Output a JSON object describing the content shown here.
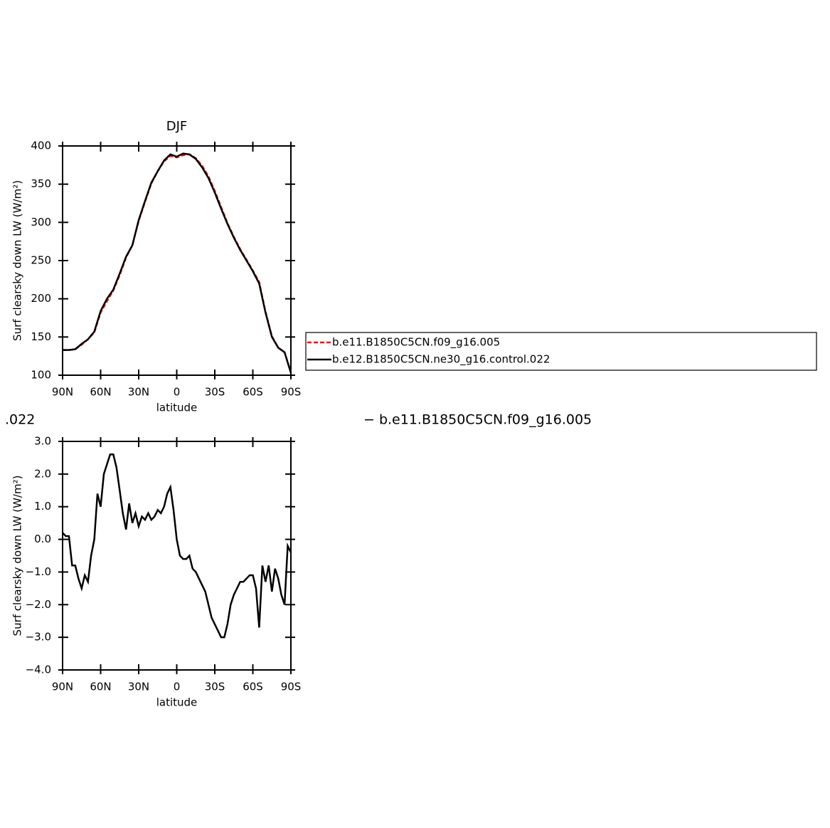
{
  "chart_data": [
    {
      "type": "line",
      "title": "DJF",
      "x_label": "latitude",
      "y_label": "Surf clearsky down LW (W/m²)",
      "x": [
        90,
        85,
        80,
        75,
        70,
        65,
        60,
        55,
        50,
        45,
        40,
        35,
        30,
        25,
        20,
        15,
        10,
        5,
        0,
        -5,
        -10,
        -15,
        -20,
        -25,
        -30,
        -35,
        -40,
        -45,
        -50,
        -55,
        -60,
        -65,
        -70,
        -75,
        -80,
        -85,
        -90
      ],
      "xlim": [
        90,
        -90
      ],
      "xticks": [
        {
          "value": 90,
          "label": "90N"
        },
        {
          "value": 60,
          "label": "60N"
        },
        {
          "value": 30,
          "label": "30N"
        },
        0,
        {
          "value": -30,
          "label": "30S"
        },
        {
          "value": -60,
          "label": "60S"
        },
        {
          "value": -90,
          "label": "90S"
        }
      ],
      "ylim": [
        100,
        400
      ],
      "yticks": [
        100,
        150,
        200,
        250,
        300,
        350,
        400
      ],
      "legend_position": "outside-right",
      "series": [
        {
          "name": "b.e11.B1850C5CN.f09_g16.005",
          "color": "#ff0000",
          "linestyle": "dashed",
          "values": [
            133,
            133,
            134,
            140,
            147,
            156,
            182,
            197,
            211,
            231,
            254,
            270,
            302,
            327,
            351,
            367,
            380,
            387,
            385,
            388,
            389,
            384,
            374,
            360,
            341,
            320,
            299,
            281,
            265,
            251,
            237,
            222,
            183,
            151,
            136,
            130,
            104
          ]
        },
        {
          "name": "b.e12.B1850C5CN.ne30_g16.control.022",
          "color": "#000000",
          "linestyle": "solid",
          "values": [
            133,
            133,
            134,
            141,
            147,
            157,
            184,
            200,
            212,
            233,
            255,
            270,
            303,
            328,
            352,
            367,
            381,
            389,
            386,
            390,
            389,
            383,
            372,
            358,
            339,
            318,
            298,
            280,
            264,
            250,
            236,
            220,
            182,
            150,
            136,
            130,
            103
          ]
        }
      ]
    },
    {
      "type": "line",
      "title_left": ".022",
      "title_right": "− b.e11.B1850C5CN.f09_g16.005",
      "x_label": "latitude",
      "y_label": "Surf clearsky down LW (W/m²)",
      "x": [
        90,
        87.5,
        85,
        82.5,
        80,
        77.5,
        75,
        72.5,
        70,
        67.5,
        65,
        62.5,
        60,
        57.5,
        55,
        52.5,
        50,
        47.5,
        45,
        42.5,
        40,
        37.5,
        35,
        32.5,
        30,
        27.5,
        25,
        22.5,
        20,
        17.5,
        15,
        12.5,
        10,
        7.5,
        5,
        2.5,
        0,
        -2.5,
        -5,
        -7.5,
        -10,
        -12.5,
        -15,
        -17.5,
        -20,
        -22.5,
        -25,
        -27.5,
        -30,
        -32.5,
        -35,
        -37.5,
        -40,
        -42.5,
        -45,
        -47.5,
        -50,
        -52.5,
        -55,
        -57.5,
        -60,
        -62.5,
        -65,
        -67.5,
        -70,
        -72.5,
        -75,
        -77.5,
        -80,
        -82.5,
        -85,
        -87.5,
        -90
      ],
      "xlim": [
        90,
        -90
      ],
      "xticks": [
        {
          "value": 90,
          "label": "90N"
        },
        {
          "value": 60,
          "label": "60N"
        },
        {
          "value": 30,
          "label": "30N"
        },
        0,
        {
          "value": -30,
          "label": "30S"
        },
        {
          "value": -60,
          "label": "60S"
        },
        {
          "value": -90,
          "label": "90S"
        }
      ],
      "ylim": [
        -4,
        3
      ],
      "yticks": [
        {
          "value": -4,
          "label": "−4.0"
        },
        {
          "value": -3,
          "label": "−3.0"
        },
        {
          "value": -2,
          "label": "−2.0"
        },
        {
          "value": -1,
          "label": "−1.0"
        },
        {
          "value": 0,
          "label": "0.0"
        },
        {
          "value": 1,
          "label": "1.0"
        },
        {
          "value": 2,
          "label": "2.0"
        },
        {
          "value": 3,
          "label": "3.0"
        }
      ],
      "series": [
        {
          "color": "#000000",
          "linestyle": "solid",
          "values": [
            0.2,
            0.1,
            0.1,
            -0.8,
            -0.8,
            -1.2,
            -1.5,
            -1.1,
            -1.3,
            -0.5,
            0.0,
            1.4,
            1.0,
            2.0,
            2.3,
            2.6,
            2.6,
            2.2,
            1.5,
            0.8,
            0.3,
            1.1,
            0.5,
            0.8,
            0.4,
            0.7,
            0.6,
            0.8,
            0.6,
            0.7,
            0.9,
            0.8,
            1.0,
            1.4,
            1.6,
            0.9,
            0.0,
            -0.5,
            -0.6,
            -0.6,
            -0.5,
            -0.9,
            -1.0,
            -1.2,
            -1.4,
            -1.6,
            -2.0,
            -2.4,
            -2.6,
            -2.8,
            -3.0,
            -3.0,
            -2.6,
            -2.0,
            -1.7,
            -1.5,
            -1.3,
            -1.3,
            -1.2,
            -1.1,
            -1.1,
            -1.5,
            -2.7,
            -0.8,
            -1.3,
            -0.8,
            -1.6,
            -0.9,
            -1.2,
            -1.7,
            -2.0,
            -0.2,
            -0.4
          ]
        }
      ]
    }
  ]
}
